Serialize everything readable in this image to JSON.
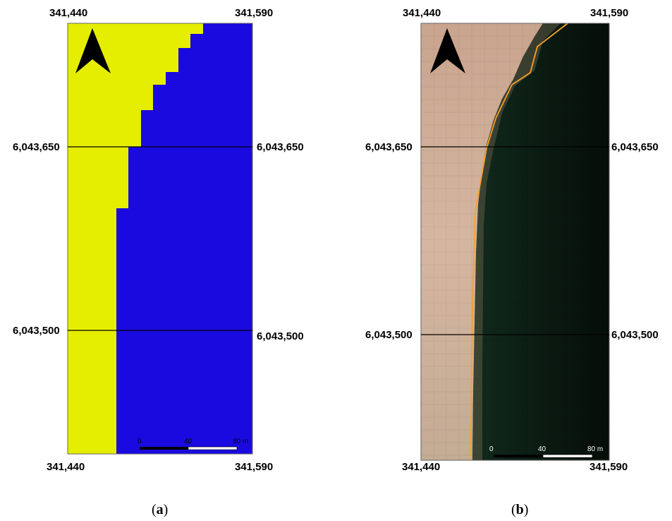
{
  "panel_a": {
    "caption_letter": "a",
    "top_left_easting": "341,440",
    "top_right_easting": "341,590",
    "bottom_left_easting": "341,440",
    "bottom_right_easting": "341,590",
    "northing_upper_left": "6,043,650",
    "northing_upper_right": "6,043,650",
    "northing_lower_left": "6,043,500",
    "northing_lower_right": "6,043,500",
    "scale_labels": [
      "0",
      "40",
      "80 m"
    ],
    "colors": {
      "land": "#e6ee00",
      "water": "#1a0ae0"
    }
  },
  "panel_b": {
    "caption_letter": "b",
    "top_left_easting": "341,440",
    "top_right_easting": "341,590",
    "bottom_left_easting": "341,440",
    "bottom_right_easting": "341,590",
    "northing_upper_left": "6,043,650",
    "northing_upper_right": "6,043,650",
    "northing_lower_left": "6,043,500",
    "northing_lower_right": "6,043,500",
    "scale_labels": [
      "0",
      "40",
      "80 m"
    ],
    "colors": {
      "sand": "#d2b29a",
      "water": "#0f2418",
      "shoreline": "#f5a02a"
    }
  },
  "icons": {
    "north_arrow": "north-arrow-icon"
  }
}
